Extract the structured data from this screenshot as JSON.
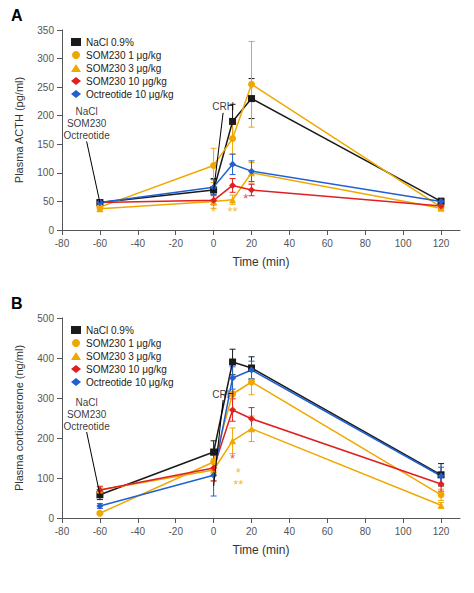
{
  "chart_data": [
    {
      "type": "line",
      "title": "A",
      "xlabel": "Time (min)",
      "ylabel": "Plasma ACTH (pg/ml)",
      "xlim": [
        -80,
        130
      ],
      "xticks": [
        -80,
        -60,
        -40,
        -20,
        0,
        20,
        40,
        60,
        80,
        100,
        120
      ],
      "ylim": [
        0,
        350
      ],
      "yticks": [
        0,
        50,
        100,
        150,
        200,
        250,
        300,
        350
      ],
      "x": [
        -60,
        0,
        10,
        20,
        120
      ],
      "series": [
        {
          "name": "NaCl 0.9%",
          "color": "#1a1a1a",
          "marker": "square",
          "values": [
            48,
            70,
            190,
            230,
            50
          ],
          "yerr": [
            4,
            20,
            30,
            35,
            4
          ]
        },
        {
          "name": "SOM230 1 μg/kg",
          "color": "#f0a800",
          "marker": "circle",
          "values": [
            40,
            113,
            160,
            255,
            40
          ],
          "yerr": [
            4,
            30,
            28,
            75,
            4
          ]
        },
        {
          "name": "SOM230 3 μg/kg",
          "color": "#f0a800",
          "marker": "triangle",
          "values": [
            37,
            50,
            53,
            100,
            38
          ],
          "yerr": [
            4,
            12,
            8,
            18,
            4
          ]
        },
        {
          "name": "SOM230 10 μg/kg",
          "color": "#e02020",
          "marker": "diamond",
          "values": [
            48,
            52,
            78,
            70,
            42
          ],
          "yerr": [
            4,
            8,
            12,
            10,
            4
          ]
        },
        {
          "name": "Octreotide 10 μg/kg",
          "color": "#2060d0",
          "marker": "diamond",
          "values": [
            48,
            75,
            115,
            103,
            50
          ],
          "yerr": [
            4,
            13,
            18,
            18,
            6
          ]
        }
      ],
      "annotations": [
        {
          "text": "NaCl\nSOM230\nOctreotide",
          "xy": [
            -60,
            48
          ],
          "xytext": [
            -67,
            155
          ]
        },
        {
          "text": "CRH",
          "xy": [
            0,
            68
          ],
          "xytext": [
            5,
            205
          ]
        },
        {
          "text": "*",
          "x": 0,
          "y": 33,
          "color": "#f0a800"
        },
        {
          "text": "**",
          "x": 10,
          "y": 33,
          "color": "#f0a800"
        },
        {
          "text": "*",
          "x": 17,
          "y": 55,
          "color": "#e02020"
        }
      ],
      "legend": "upper left",
      "grid": false
    },
    {
      "type": "line",
      "title": "B",
      "xlabel": "Time (min)",
      "ylabel": "Plasma corticosterone (ng/ml)",
      "xlim": [
        -80,
        130
      ],
      "xticks": [
        -80,
        -60,
        -40,
        -20,
        0,
        20,
        40,
        60,
        80,
        100,
        120
      ],
      "ylim": [
        0,
        500
      ],
      "yticks": [
        0,
        100,
        200,
        300,
        400,
        500
      ],
      "x": [
        -60,
        0,
        10,
        20,
        120
      ],
      "series": [
        {
          "name": "NaCl 0.9%",
          "color": "#1a1a1a",
          "marker": "square",
          "values": [
            58,
            165,
            390,
            375,
            108
          ],
          "yerr": [
            12,
            28,
            32,
            28,
            28
          ]
        },
        {
          "name": "SOM230 1 μg/kg",
          "color": "#f0a800",
          "marker": "circle",
          "values": [
            12,
            140,
            310,
            340,
            58
          ],
          "yerr": [
            4,
            22,
            38,
            32,
            14
          ]
        },
        {
          "name": "SOM230 3 μg/kg",
          "color": "#f0a800",
          "marker": "triangle",
          "values": [
            70,
            120,
            193,
            223,
            32
          ],
          "yerr": [
            10,
            28,
            32,
            32,
            7
          ]
        },
        {
          "name": "SOM230 10 μg/kg",
          "color": "#e02020",
          "marker": "diamond",
          "values": [
            70,
            125,
            270,
            248,
            85
          ],
          "yerr": [
            8,
            32,
            28,
            28,
            18
          ]
        },
        {
          "name": "Octreotide 10 μg/kg",
          "color": "#2060d0",
          "marker": "diamond",
          "values": [
            30,
            107,
            350,
            370,
            105
          ],
          "yerr": [
            6,
            52,
            28,
            22,
            22
          ]
        }
      ],
      "annotations": [
        {
          "text": "NaCl\nSOM230\nOctreotide",
          "xy": [
            -60,
            58
          ],
          "xytext": [
            -67,
            215
          ]
        },
        {
          "text": "CRH",
          "xy": [
            0,
            80
          ],
          "xytext": [
            5,
            295
          ]
        },
        {
          "text": "*",
          "x": 10,
          "y": 148,
          "color": "#e02020"
        },
        {
          "text": "*",
          "x": 13,
          "y": 115,
          "color": "#f0a800"
        },
        {
          "text": "**",
          "x": 13,
          "y": 85,
          "color": "#f0a800"
        }
      ],
      "legend": "upper left",
      "grid": false
    }
  ]
}
